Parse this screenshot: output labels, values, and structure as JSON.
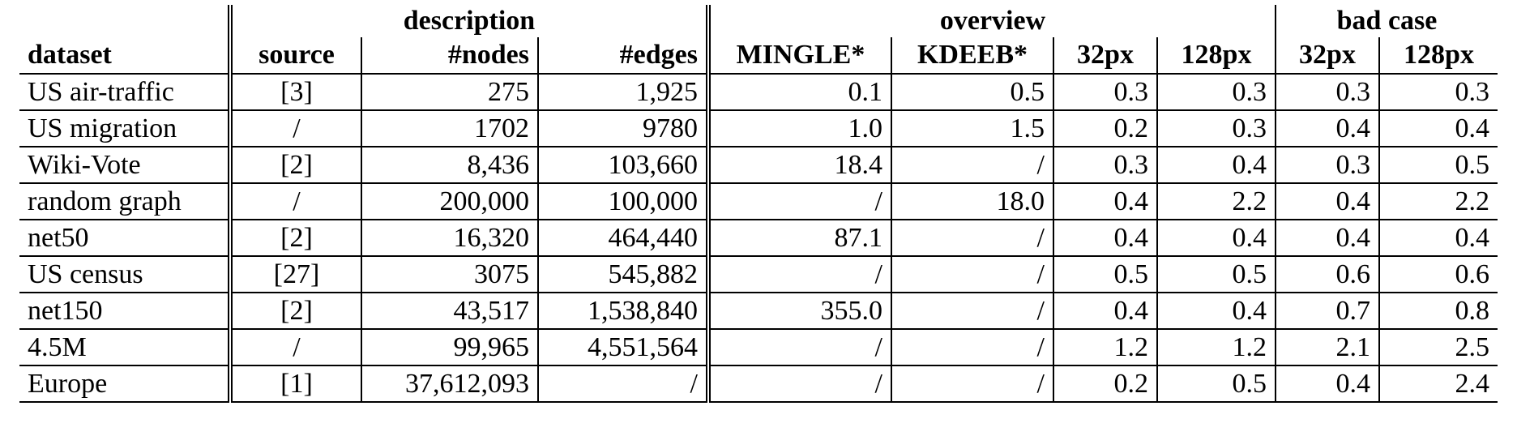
{
  "groups": {
    "description": "description",
    "overview": "overview",
    "bad_case": "bad case"
  },
  "columns": [
    "dataset",
    "source",
    "#nodes",
    "#edges",
    "MINGLE*",
    "KDEEB*",
    "32px",
    "128px",
    "32px",
    "128px"
  ],
  "rows": [
    [
      "US air-traffic",
      "[3]",
      "275",
      "1,925",
      "0.1",
      "0.5",
      "0.3",
      "0.3",
      "0.3",
      "0.3"
    ],
    [
      "US migration",
      "/",
      "1702",
      "9780",
      "1.0",
      "1.5",
      "0.2",
      "0.3",
      "0.4",
      "0.4"
    ],
    [
      "Wiki-Vote",
      "[2]",
      "8,436",
      "103,660",
      "18.4",
      "/",
      "0.3",
      "0.4",
      "0.3",
      "0.5"
    ],
    [
      "random graph",
      "/",
      "200,000",
      "100,000",
      "/",
      "18.0",
      "0.4",
      "2.2",
      "0.4",
      "2.2"
    ],
    [
      "net50",
      "[2]",
      "16,320",
      "464,440",
      "87.1",
      "/",
      "0.4",
      "0.4",
      "0.4",
      "0.4"
    ],
    [
      "US census",
      "[27]",
      "3075",
      "545,882",
      "/",
      "/",
      "0.5",
      "0.5",
      "0.6",
      "0.6"
    ],
    [
      "net150",
      "[2]",
      "43,517",
      "1,538,840",
      "355.0",
      "/",
      "0.4",
      "0.4",
      "0.7",
      "0.8"
    ],
    [
      "4.5M",
      "/",
      "99,965",
      "4,551,564",
      "/",
      "/",
      "1.2",
      "1.2",
      "2.1",
      "2.5"
    ],
    [
      "Europe",
      "[1]",
      "37,612,093",
      "/",
      "/",
      "/",
      "0.2",
      "0.5",
      "0.4",
      "2.4"
    ]
  ]
}
